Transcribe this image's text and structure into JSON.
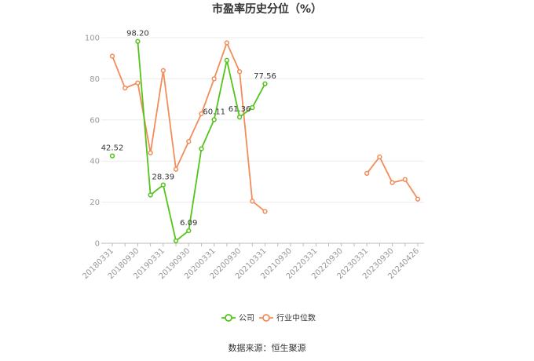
{
  "chart_data": {
    "type": "line",
    "title": "市盈率历史分位（%）",
    "xlabel": "",
    "ylabel": "",
    "ylim": [
      0,
      100
    ],
    "yticks": [
      0,
      20,
      40,
      60,
      80,
      100
    ],
    "grid": true,
    "legend_position": "bottom-center",
    "tick_labels": [
      "20180331",
      "20180930",
      "20190331",
      "20190930",
      "20200331",
      "20200930",
      "20210331",
      "20210930",
      "20220331",
      "20220930",
      "20230331",
      "20230930",
      "20240426"
    ],
    "categories": [
      "20180331",
      "20180630",
      "20180930",
      "20181231",
      "20190331",
      "20190630",
      "20190930",
      "20191231",
      "20200331",
      "20200630",
      "20200930",
      "20201231",
      "20210331",
      "20210630",
      "20210930",
      "20211231",
      "20220331",
      "20220630",
      "20220930",
      "20221231",
      "20230331",
      "20230630",
      "20230930",
      "20231231",
      "20240426"
    ],
    "series": [
      {
        "name": "公司",
        "color": "#52c41a",
        "values": [
          42.52,
          null,
          98.2,
          23.5,
          28.39,
          1.2,
          6.09,
          46.0,
          60.11,
          89.0,
          61.36,
          66.0,
          77.56,
          null,
          null,
          null,
          null,
          null,
          null,
          null,
          null,
          null,
          null,
          null,
          null
        ],
        "labels": {
          "0": "42.52",
          "2": "98.20",
          "4": "28.39",
          "6": "6.09",
          "8": "60.11",
          "10": "61.36",
          "12": "77.56"
        }
      },
      {
        "name": "行业中位数",
        "color": "#f28c5a",
        "values": [
          91.0,
          75.5,
          78.0,
          44.0,
          84.0,
          36.0,
          49.5,
          63.0,
          80.0,
          97.5,
          83.5,
          20.5,
          15.5,
          null,
          null,
          null,
          null,
          null,
          null,
          null,
          34.0,
          42.0,
          29.5,
          31.0,
          21.5
        ]
      }
    ]
  },
  "source_text": "数据来源：恒生聚源"
}
